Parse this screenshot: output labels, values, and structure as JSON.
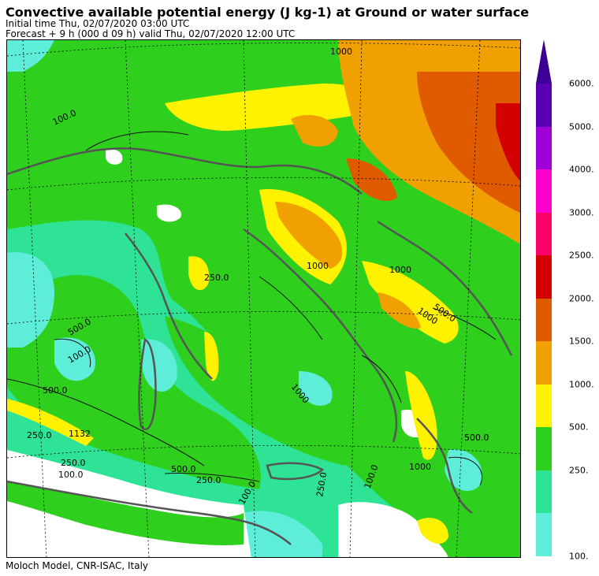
{
  "header": {
    "title": "Convective available potential energy (J kg-1) at Ground or water surface",
    "initial_time": "Initial time  Thu, 02/07/2020  03:00 UTC",
    "forecast": "Forecast  +   9 h  (000 d 09 h)  valid Thu, 02/07/2020 12:00 UTC"
  },
  "footer": {
    "credit": "Moloch Model, CNR-ISAC, Italy"
  },
  "map": {
    "contour_labels": [
      "1000",
      "100.0",
      "250.0",
      "500.0",
      "1000",
      "100.0",
      "500.0",
      "250.0",
      "1132",
      "250.0",
      "100.0",
      "500.0",
      "250.0",
      "1000",
      "1000",
      "500.0",
      "1000",
      "500.0",
      "100.0",
      "1000",
      "250.0",
      "100.0"
    ],
    "colors": {
      "sea_low": "#5eedd8",
      "mid": "#2ee396",
      "green": "#2ecf1d",
      "yellow": "#fff200",
      "orange": "#f0a000",
      "dark_orange": "#e05a00",
      "red": "#d01010",
      "coast": "#555555",
      "contour": "#111111"
    }
  },
  "legend": {
    "labels": [
      "6000.",
      "5000.",
      "4000.",
      "3000.",
      "2500.",
      "2000.",
      "1500.",
      "1000.",
      "500.",
      "250.",
      "100."
    ],
    "colors": [
      "#5a00b4",
      "#a000d8",
      "#ff00cc",
      "#ff0066",
      "#d20000",
      "#e05a00",
      "#f0a000",
      "#fff200",
      "#2ecf1d",
      "#2ee396",
      "#5eedd8"
    ],
    "arrow_color": "#3c0096"
  }
}
